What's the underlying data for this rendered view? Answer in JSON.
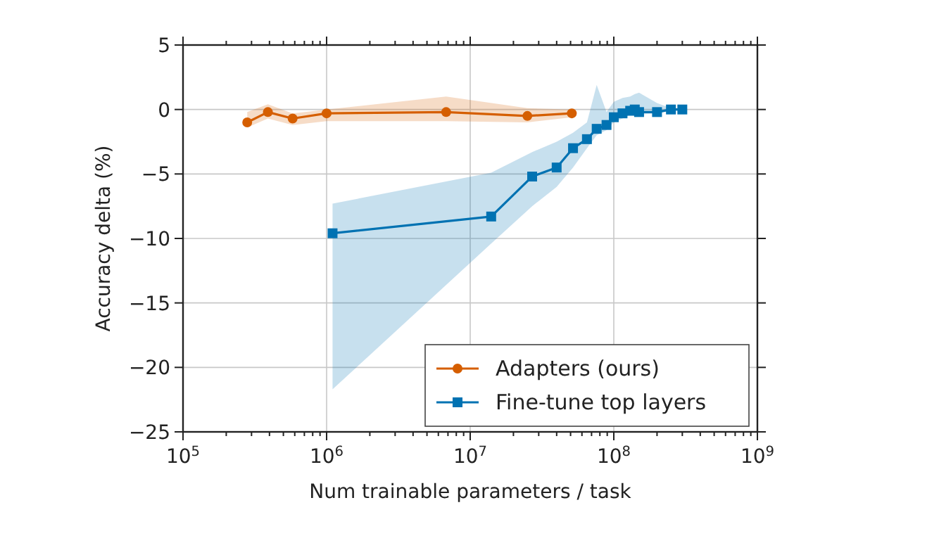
{
  "chart_data": {
    "type": "line",
    "xlabel": "Num trainable parameters / task",
    "ylabel": "Accuracy delta (%)",
    "log": "x",
    "grid": true,
    "legend": "bottom right",
    "line_style": "solid",
    "xlim": [
      100000,
      1000000000
    ],
    "ylim": [
      -25,
      5
    ],
    "xticks": [
      {
        "value": 100000,
        "label": "10$^{5}$"
      },
      {
        "value": 200000,
        "label": null
      },
      {
        "value": 300000,
        "label": null
      },
      {
        "value": 400000,
        "label": null
      },
      {
        "value": 500000,
        "label": null
      },
      {
        "value": 600000,
        "label": null
      },
      {
        "value": 700000,
        "label": null
      },
      {
        "value": 800000,
        "label": null
      },
      {
        "value": 900000,
        "label": null
      },
      {
        "value": 1000000,
        "label": "10$^{6}$"
      },
      {
        "value": 2000000,
        "label": null
      },
      {
        "value": 3000000,
        "label": null
      },
      {
        "value": 4000000,
        "label": null
      },
      {
        "value": 5000000,
        "label": null
      },
      {
        "value": 6000000,
        "label": null
      },
      {
        "value": 7000000,
        "label": null
      },
      {
        "value": 8000000,
        "label": null
      },
      {
        "value": 9000000,
        "label": null
      },
      {
        "value": 10000000,
        "label": "10$^{7}$"
      },
      {
        "value": 20000000,
        "label": null
      },
      {
        "value": 30000000,
        "label": null
      },
      {
        "value": 40000000,
        "label": null
      },
      {
        "value": 50000000,
        "label": null
      },
      {
        "value": 60000000,
        "label": null
      },
      {
        "value": 70000000,
        "label": null
      },
      {
        "value": 80000000,
        "label": null
      },
      {
        "value": 90000000,
        "label": null
      },
      {
        "value": 100000000,
        "label": "10$^{8}$"
      },
      {
        "value": 200000000,
        "label": null
      },
      {
        "value": 300000000,
        "label": null
      },
      {
        "value": 400000000,
        "label": null
      },
      {
        "value": 500000000,
        "label": null
      },
      {
        "value": 600000000,
        "label": null
      },
      {
        "value": 700000000,
        "label": null
      },
      {
        "value": 800000000,
        "label": null
      },
      {
        "value": 900000000,
        "label": null
      },
      {
        "value": 1000000000,
        "label": "10$^{9}$"
      }
    ],
    "yticks": [
      -25,
      -20,
      -15,
      -10,
      -5,
      0,
      5
    ],
    "series": [
      {
        "name": "Adapters (ours)",
        "color": "#d55e00",
        "marker": "circle",
        "x": [
          280000,
          390000,
          580000,
          1000000,
          6800000,
          25000000,
          51000000
        ],
        "values": [
          -1.0,
          -0.2,
          -0.7,
          -0.3,
          -0.2,
          -0.5,
          -0.3
        ],
        "lower": [
          -1.4,
          -0.7,
          -1.2,
          -0.9,
          -0.9,
          -1.0,
          -0.6
        ],
        "upper": [
          -0.2,
          0.4,
          -0.3,
          0.0,
          1.0,
          0.1,
          0.0
        ]
      },
      {
        "name": "Fine-tune top layers",
        "color": "#0072b2",
        "marker": "square",
        "x": [
          1100000,
          14000000,
          27000000,
          40000000,
          52000000,
          65000000,
          76000000,
          89000000,
          100000000,
          115000000,
          130000000,
          140000000,
          150000000,
          200000000,
          250000000,
          300000000
        ],
        "values": [
          -9.6,
          -8.3,
          -5.2,
          -4.5,
          -3.0,
          -2.3,
          -1.5,
          -1.2,
          -0.6,
          -0.3,
          -0.1,
          0.0,
          -0.2,
          -0.2,
          0.0,
          0.0
        ],
        "lower": [
          -21.7,
          -10.4,
          -7.5,
          -6.0,
          -4.5,
          -3.0,
          -2.0,
          -1.6,
          -1.0,
          -0.7,
          -0.4,
          -0.3,
          -0.4,
          -0.3,
          -0.1,
          -0.1
        ],
        "upper": [
          -7.3,
          -4.9,
          -3.3,
          -2.5,
          -1.8,
          -1.0,
          1.9,
          -0.2,
          0.6,
          0.9,
          1.0,
          1.2,
          1.3,
          0.5,
          0.1,
          0.1
        ]
      }
    ]
  }
}
